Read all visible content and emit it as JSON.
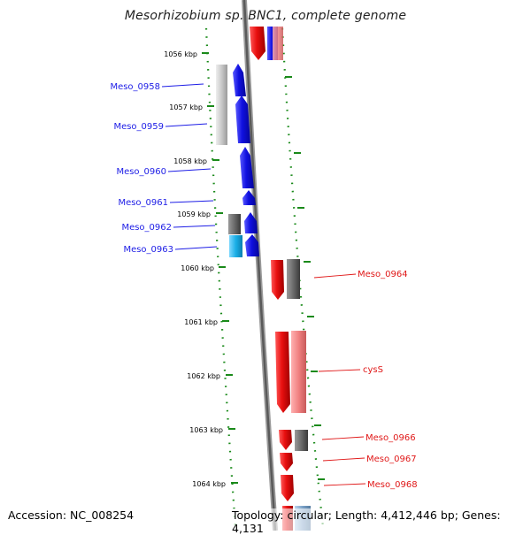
{
  "title": "Mesorhizobium sp. BNC1, complete genome",
  "footer": {
    "accession": "Accession: NC_008254",
    "topology": "Topology: circular; Length: 4,412,446 bp; Genes: 4,131"
  },
  "ruler": [
    "1056 kbp",
    "1057 kbp",
    "1058 kbp",
    "1059 kbp",
    "1060 kbp",
    "1061 kbp",
    "1062 kbp",
    "1063 kbp",
    "1064 kbp"
  ],
  "colors": {
    "minus_strand": "#1d1de6",
    "plus_strand": "#e01818",
    "tick": "#1a8a1a",
    "backbone": "#7a7a7a",
    "pseudo_gray": "#707070",
    "cyan": "#1ab3e6"
  },
  "genes_left": [
    {
      "label": "Meso_0958"
    },
    {
      "label": "Meso_0959"
    },
    {
      "label": "Meso_0960"
    },
    {
      "label": "Meso_0961"
    },
    {
      "label": "Meso_0962"
    },
    {
      "label": "Meso_0963"
    }
  ],
  "genes_right": [
    {
      "label": "Meso_0964"
    },
    {
      "label": "cysS"
    },
    {
      "label": "Meso_0966"
    },
    {
      "label": "Meso_0967"
    },
    {
      "label": "Meso_0968"
    }
  ]
}
